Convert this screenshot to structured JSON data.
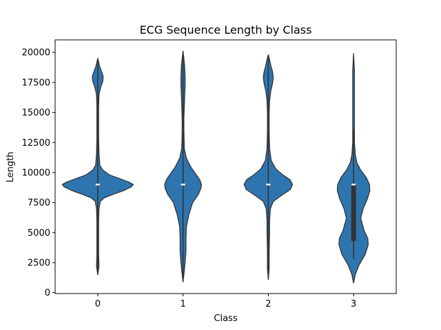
{
  "chart_data": {
    "type": "violin",
    "title": "ECG Sequence Length by Class",
    "xlabel": "Class",
    "ylabel": "Length",
    "categories": [
      "0",
      "1",
      "2",
      "3"
    ],
    "ylim": [
      0,
      20800
    ],
    "yticks": [
      0,
      2500,
      5000,
      7500,
      10000,
      12500,
      15000,
      17500,
      20000
    ],
    "ytick_labels": [
      "0",
      "2500",
      "5000",
      "7500",
      "10000",
      "12500",
      "15000",
      "17500",
      "20000"
    ],
    "grid": false,
    "fill_color": "#2e75b0",
    "edge_color": "#333333",
    "box_color": "#333333",
    "median_color": "#ffffff",
    "violins": [
      {
        "category": "0",
        "min": 1500,
        "max": 19500,
        "median": 9000,
        "q1": 9000,
        "q3": 9000,
        "profile": [
          [
            1500,
            0.0
          ],
          [
            2200,
            0.03
          ],
          [
            3200,
            0.02
          ],
          [
            4000,
            0.02
          ],
          [
            5000,
            0.02
          ],
          [
            6000,
            0.02
          ],
          [
            7000,
            0.03
          ],
          [
            7600,
            0.06
          ],
          [
            7900,
            0.16
          ],
          [
            8200,
            0.38
          ],
          [
            8500,
            0.62
          ],
          [
            8800,
            0.8
          ],
          [
            9000,
            0.85
          ],
          [
            9200,
            0.75
          ],
          [
            9500,
            0.52
          ],
          [
            9800,
            0.28
          ],
          [
            10200,
            0.12
          ],
          [
            10600,
            0.05
          ],
          [
            11500,
            0.03
          ],
          [
            13000,
            0.02
          ],
          [
            14500,
            0.02
          ],
          [
            15500,
            0.02
          ],
          [
            16500,
            0.03
          ],
          [
            17100,
            0.07
          ],
          [
            17600,
            0.12
          ],
          [
            18000,
            0.13
          ],
          [
            18400,
            0.09
          ],
          [
            18900,
            0.04
          ],
          [
            19500,
            0.0
          ]
        ]
      },
      {
        "category": "1",
        "min": 900,
        "max": 20100,
        "median": 9000,
        "q1": 9000,
        "q3": 9000,
        "profile": [
          [
            900,
            0.0
          ],
          [
            1500,
            0.02
          ],
          [
            2500,
            0.05
          ],
          [
            3500,
            0.07
          ],
          [
            4500,
            0.07
          ],
          [
            5500,
            0.08
          ],
          [
            6500,
            0.14
          ],
          [
            7500,
            0.23
          ],
          [
            8200,
            0.37
          ],
          [
            8700,
            0.43
          ],
          [
            9000,
            0.44
          ],
          [
            9400,
            0.4
          ],
          [
            9900,
            0.3
          ],
          [
            10500,
            0.18
          ],
          [
            11200,
            0.08
          ],
          [
            12000,
            0.03
          ],
          [
            13500,
            0.02
          ],
          [
            14500,
            0.02
          ],
          [
            15500,
            0.03
          ],
          [
            16500,
            0.04
          ],
          [
            17300,
            0.05
          ],
          [
            18000,
            0.05
          ],
          [
            18800,
            0.04
          ],
          [
            19500,
            0.02
          ],
          [
            20100,
            0.0
          ]
        ]
      },
      {
        "category": "2",
        "min": 1100,
        "max": 19800,
        "median": 9000,
        "q1": 9000,
        "q3": 9000,
        "profile": [
          [
            1100,
            0.0
          ],
          [
            2000,
            0.02
          ],
          [
            3500,
            0.02
          ],
          [
            5000,
            0.03
          ],
          [
            6000,
            0.03
          ],
          [
            7000,
            0.05
          ],
          [
            7600,
            0.12
          ],
          [
            8100,
            0.32
          ],
          [
            8600,
            0.53
          ],
          [
            9000,
            0.58
          ],
          [
            9400,
            0.52
          ],
          [
            9800,
            0.35
          ],
          [
            10300,
            0.18
          ],
          [
            11000,
            0.07
          ],
          [
            12000,
            0.03
          ],
          [
            13500,
            0.02
          ],
          [
            15000,
            0.02
          ],
          [
            16000,
            0.03
          ],
          [
            16800,
            0.06
          ],
          [
            17400,
            0.1
          ],
          [
            17900,
            0.12
          ],
          [
            18400,
            0.1
          ],
          [
            18900,
            0.06
          ],
          [
            19400,
            0.03
          ],
          [
            19800,
            0.0
          ]
        ]
      },
      {
        "category": "3",
        "min": 800,
        "max": 19900,
        "median": 9000,
        "q1": 4300,
        "q3": 9000,
        "whisker_low": 2800,
        "whisker_high": 13500,
        "profile": [
          [
            800,
            0.0
          ],
          [
            1500,
            0.04
          ],
          [
            2300,
            0.13
          ],
          [
            3200,
            0.28
          ],
          [
            4000,
            0.35
          ],
          [
            4500,
            0.34
          ],
          [
            5200,
            0.25
          ],
          [
            6200,
            0.17
          ],
          [
            7000,
            0.23
          ],
          [
            7800,
            0.33
          ],
          [
            8500,
            0.39
          ],
          [
            9000,
            0.38
          ],
          [
            9600,
            0.3
          ],
          [
            10200,
            0.17
          ],
          [
            10800,
            0.08
          ],
          [
            11500,
            0.04
          ],
          [
            12500,
            0.02
          ],
          [
            14000,
            0.02
          ],
          [
            15500,
            0.02
          ],
          [
            17000,
            0.02
          ],
          [
            18500,
            0.02
          ],
          [
            19900,
            0.0
          ]
        ]
      }
    ]
  }
}
